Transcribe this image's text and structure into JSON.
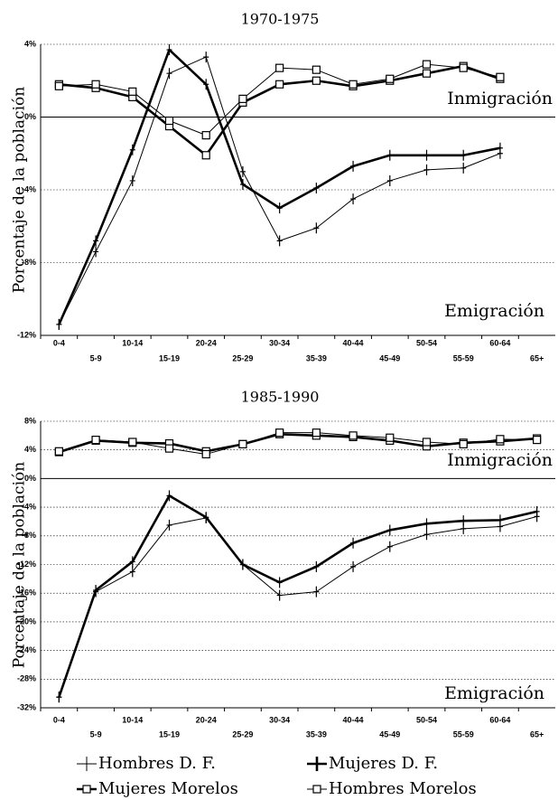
{
  "chart_data": [
    {
      "type": "line",
      "title": "1970-1975",
      "y_label": "Porcentaje de la población",
      "annotations": [
        "Inmigración",
        "Emigración"
      ],
      "categories": [
        "0-4",
        "5-9",
        "10-14",
        "15-19",
        "20-24",
        "25-29",
        "30-34",
        "35-39",
        "40-44",
        "45-49",
        "50-54",
        "55-59",
        "60-64",
        "65+"
      ],
      "ylim": [
        -12,
        4
      ],
      "yticks": [
        {
          "value": -12,
          "label": "-12%"
        },
        {
          "value": -8,
          "label": "-8%"
        },
        {
          "value": -4,
          "label": "-4%"
        },
        {
          "value": 0,
          "label": "0%"
        },
        {
          "value": 4,
          "label": "4%"
        }
      ],
      "grid": true,
      "series": [
        {
          "color": "#000",
          "line_width": 1,
          "marker": "plus",
          "values": [
            -11.4,
            -7.4,
            -3.5,
            2.4,
            3.3,
            -3.0,
            -6.8,
            -6.1,
            -4.5,
            -3.5,
            -2.9,
            -2.8,
            -2.0,
            null
          ]
        },
        {
          "color": "#000",
          "line_width": 2.6,
          "marker": "plus",
          "values": [
            -11.4,
            -6.8,
            -1.8,
            3.7,
            1.8,
            -3.7,
            -5.0,
            -3.9,
            -2.7,
            -2.1,
            -2.1,
            -2.1,
            -1.7,
            null
          ]
        },
        {
          "color": "#000",
          "line_width": 2.6,
          "marker": "square",
          "values": [
            1.8,
            1.6,
            1.1,
            -0.5,
            -2.1,
            0.8,
            1.8,
            2.0,
            1.7,
            2.0,
            2.4,
            2.8,
            2.1,
            null
          ]
        },
        {
          "color": "#000",
          "line_width": 1,
          "marker": "square",
          "values": [
            1.7,
            1.8,
            1.4,
            -0.2,
            -1.0,
            1.0,
            2.7,
            2.6,
            1.8,
            2.1,
            2.9,
            2.7,
            2.2,
            null
          ]
        }
      ]
    },
    {
      "type": "line",
      "title": "1985-1990",
      "y_label": "Porcentaje de la población",
      "annotations": [
        "Inmigración",
        "Emigración"
      ],
      "categories": [
        "0-4",
        "5-9",
        "10-14",
        "15-19",
        "20-24",
        "25-29",
        "30-34",
        "35-39",
        "40-44",
        "45-49",
        "50-54",
        "55-59",
        "60-64",
        "65+"
      ],
      "ylim": [
        -32,
        8
      ],
      "yticks": [
        {
          "value": -32,
          "label": "-32%"
        },
        {
          "value": -28,
          "label": "-28%"
        },
        {
          "value": -24,
          "label": "-24%"
        },
        {
          "value": -20,
          "label": "-20%"
        },
        {
          "value": -16,
          "label": "-16%"
        },
        {
          "value": -12,
          "label": "-12%"
        },
        {
          "value": -8,
          "label": "-8%"
        },
        {
          "value": -4,
          "label": "-4%"
        },
        {
          "value": 0,
          "label": "0%"
        },
        {
          "value": 4,
          "label": "4%"
        },
        {
          "value": 8,
          "label": "8%"
        }
      ],
      "grid": true,
      "series": [
        {
          "name": "Hombres D. F.",
          "color": "#000",
          "line_width": 1,
          "marker": "plus",
          "values": [
            -30.5,
            -15.8,
            -13,
            -6.5,
            -5.5,
            -12,
            -16.3,
            -15.8,
            -12.3,
            -9.5,
            -7.8,
            -7,
            -6.7,
            -5.3
          ]
        },
        {
          "name": "Mujeres D. F.",
          "color": "#000",
          "line_width": 2.6,
          "marker": "plus",
          "values": [
            -30.5,
            -15.6,
            -11.6,
            -2.4,
            -5.4,
            -12,
            -14.5,
            -12.3,
            -9,
            -7.2,
            -6.3,
            -5.9,
            -5.8,
            -4.6
          ]
        },
        {
          "name": "Mujeres Morelos",
          "color": "#000",
          "line_width": 2.6,
          "marker": "square",
          "values": [
            3.7,
            5.3,
            5.0,
            4.9,
            3.8,
            4.8,
            6.2,
            6.0,
            5.8,
            5.3,
            4.5,
            5.0,
            5.2,
            5.6
          ]
        },
        {
          "name": "Hombres Morelos",
          "color": "#000",
          "line_width": 1,
          "marker": "square",
          "values": [
            3.8,
            5.4,
            5.1,
            4.2,
            3.4,
            4.8,
            6.4,
            6.4,
            6.0,
            5.7,
            5.1,
            4.8,
            5.5,
            5.4
          ]
        }
      ]
    }
  ]
}
